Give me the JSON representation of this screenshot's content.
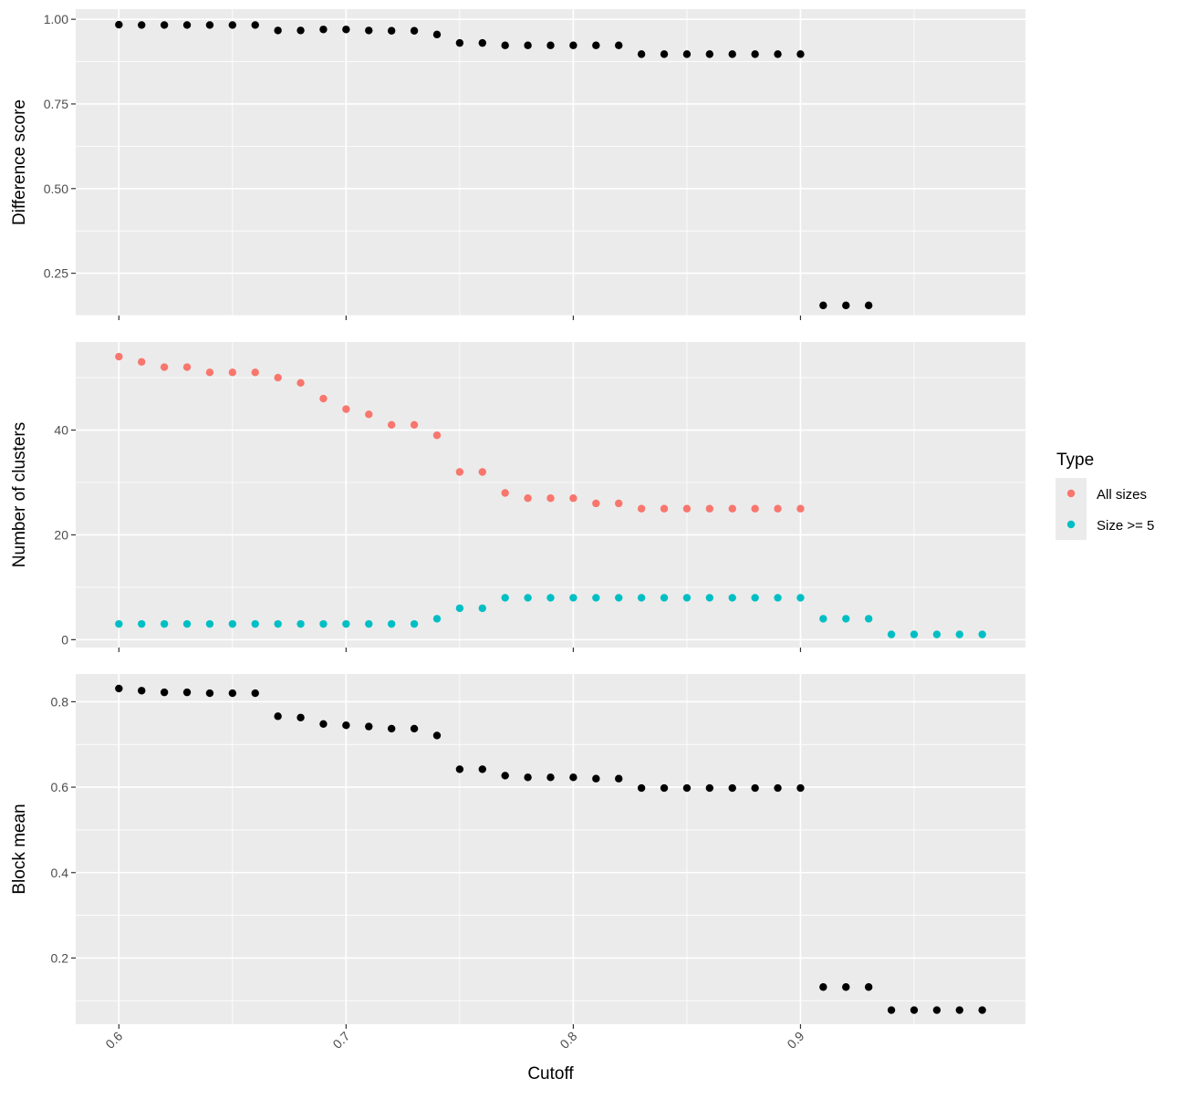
{
  "chart_data": {
    "type": "scatter",
    "facet_layout": "vertical",
    "shared_x": {
      "label": "Cutoff",
      "lim": [
        0.581,
        0.999
      ],
      "ticks": [
        0.6,
        0.7,
        0.8,
        0.9
      ],
      "tick_labels": [
        "0.6",
        "0.7",
        "0.8",
        "0.9"
      ],
      "tick_label_angle": -45
    },
    "grid": true,
    "legend": {
      "title": "Type",
      "placement": "right",
      "entries": [
        {
          "label": "All sizes",
          "color": "#F8766D"
        },
        {
          "label": "Size >= 5",
          "color": "#00BFC4"
        }
      ]
    },
    "panels": [
      {
        "ylabel": "Difference score",
        "ylim": [
          0.125,
          1.03
        ],
        "yticks": [
          0.25,
          0.5,
          0.75,
          1.0
        ],
        "ytick_labels": [
          "0.25",
          "0.50",
          "0.75",
          "1.00"
        ],
        "series": [
          {
            "color": "#000000",
            "x": [
              0.6,
              0.61,
              0.62,
              0.63,
              0.64,
              0.65,
              0.66,
              0.67,
              0.68,
              0.69,
              0.7,
              0.71,
              0.72,
              0.73,
              0.74,
              0.75,
              0.76,
              0.77,
              0.78,
              0.79,
              0.8,
              0.81,
              0.82,
              0.83,
              0.84,
              0.85,
              0.86,
              0.87,
              0.88,
              0.89,
              0.9,
              0.91,
              0.92,
              0.93
            ],
            "y": [
              0.984,
              0.983,
              0.983,
              0.983,
              0.983,
              0.983,
              0.983,
              0.967,
              0.967,
              0.97,
              0.97,
              0.967,
              0.966,
              0.966,
              0.955,
              0.93,
              0.93,
              0.923,
              0.923,
              0.923,
              0.923,
              0.923,
              0.923,
              0.897,
              0.897,
              0.897,
              0.897,
              0.897,
              0.897,
              0.897,
              0.897,
              0.155,
              0.155,
              0.155
            ]
          }
        ]
      },
      {
        "ylabel": "Number of clusters",
        "ylim": [
          -1.5,
          56.8
        ],
        "yticks": [
          0,
          20,
          40
        ],
        "ytick_labels": [
          "0",
          "20",
          "40"
        ],
        "series": [
          {
            "name": "All sizes",
            "color": "#F8766D",
            "x": [
              0.6,
              0.61,
              0.62,
              0.63,
              0.64,
              0.65,
              0.66,
              0.67,
              0.68,
              0.69,
              0.7,
              0.71,
              0.72,
              0.73,
              0.74,
              0.75,
              0.76,
              0.77,
              0.78,
              0.79,
              0.8,
              0.81,
              0.82,
              0.83,
              0.84,
              0.85,
              0.86,
              0.87,
              0.88,
              0.89,
              0.9
            ],
            "y": [
              54,
              53,
              52,
              52,
              51,
              51,
              51,
              50,
              49,
              46,
              44,
              43,
              41,
              41,
              39,
              32,
              32,
              28,
              27,
              27,
              27,
              26,
              26,
              25,
              25,
              25,
              25,
              25,
              25,
              25,
              25
            ]
          },
          {
            "name": "Size >= 5",
            "color": "#00BFC4",
            "x": [
              0.6,
              0.61,
              0.62,
              0.63,
              0.64,
              0.65,
              0.66,
              0.67,
              0.68,
              0.69,
              0.7,
              0.71,
              0.72,
              0.73,
              0.74,
              0.75,
              0.76,
              0.77,
              0.78,
              0.79,
              0.8,
              0.81,
              0.82,
              0.83,
              0.84,
              0.85,
              0.86,
              0.87,
              0.88,
              0.89,
              0.9,
              0.91,
              0.92,
              0.93,
              0.94,
              0.95,
              0.96,
              0.97,
              0.98
            ],
            "y": [
              3,
              3,
              3,
              3,
              3,
              3,
              3,
              3,
              3,
              3,
              3,
              3,
              3,
              3,
              4,
              6,
              6,
              8,
              8,
              8,
              8,
              8,
              8,
              8,
              8,
              8,
              8,
              8,
              8,
              8,
              8,
              4,
              4,
              4,
              1,
              1,
              1,
              1,
              1
            ]
          }
        ]
      },
      {
        "ylabel": "Block mean",
        "ylim": [
          0.045,
          0.865
        ],
        "yticks": [
          0.2,
          0.4,
          0.6,
          0.8
        ],
        "ytick_labels": [
          "0.2",
          "0.4",
          "0.6",
          "0.8"
        ],
        "series": [
          {
            "color": "#000000",
            "x": [
              0.6,
              0.61,
              0.62,
              0.63,
              0.64,
              0.65,
              0.66,
              0.67,
              0.68,
              0.69,
              0.7,
              0.71,
              0.72,
              0.73,
              0.74,
              0.75,
              0.76,
              0.77,
              0.78,
              0.79,
              0.8,
              0.81,
              0.82,
              0.83,
              0.84,
              0.85,
              0.86,
              0.87,
              0.88,
              0.89,
              0.9,
              0.91,
              0.92,
              0.93,
              0.94,
              0.95,
              0.96,
              0.97,
              0.98
            ],
            "y": [
              0.831,
              0.826,
              0.822,
              0.822,
              0.82,
              0.82,
              0.82,
              0.766,
              0.763,
              0.748,
              0.745,
              0.742,
              0.737,
              0.737,
              0.721,
              0.642,
              0.642,
              0.627,
              0.623,
              0.623,
              0.623,
              0.62,
              0.62,
              0.598,
              0.598,
              0.598,
              0.598,
              0.598,
              0.598,
              0.598,
              0.598,
              0.132,
              0.132,
              0.132,
              0.078,
              0.078,
              0.078,
              0.078,
              0.078
            ]
          }
        ]
      }
    ]
  }
}
